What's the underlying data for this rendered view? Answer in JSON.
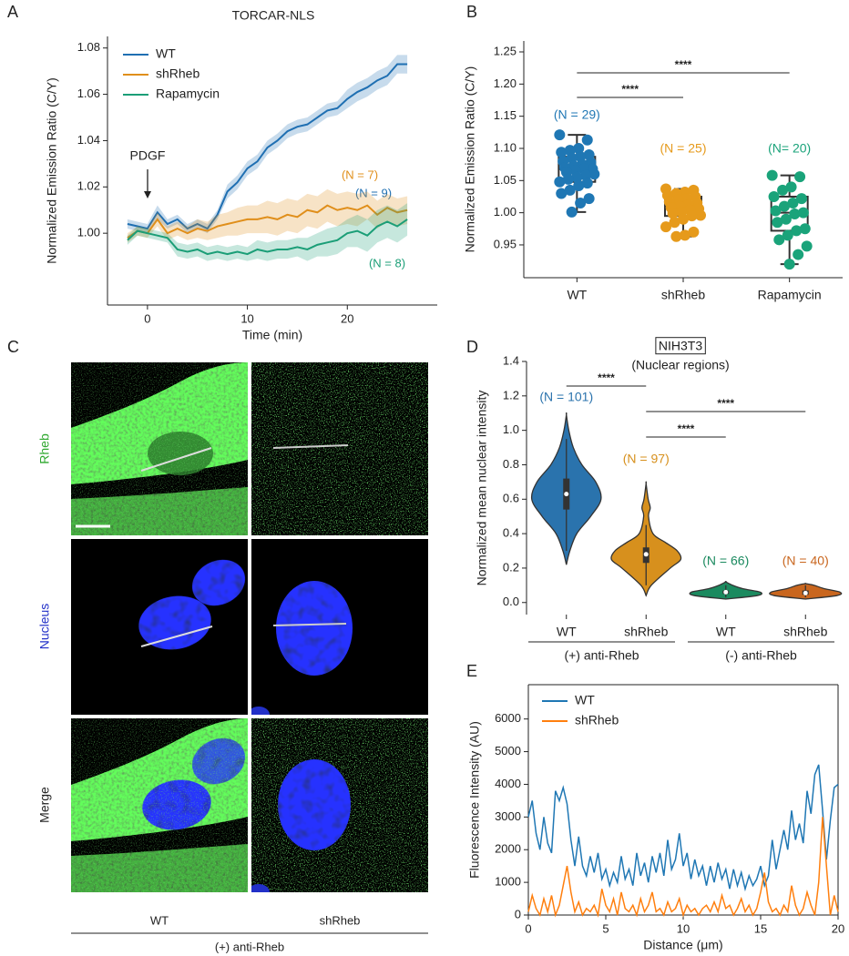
{
  "panel_labels": [
    "A",
    "B",
    "C",
    "D",
    "E"
  ],
  "image_panel": {
    "row_labels": [
      "Rheb",
      "Nucleus",
      "Merge"
    ],
    "column_labels": [
      "WT",
      "shRheb"
    ],
    "group_label": "(+) anti-Rheb"
  },
  "chart_data": [
    {
      "type": "line",
      "title": "TORCAR-NLS",
      "x_label": "Time (min)",
      "y_label": "Normalized Emission Ratio (C/Y)",
      "x": [
        -2,
        -1,
        0,
        1,
        2,
        3,
        4,
        5,
        6,
        7,
        8,
        9,
        10,
        11,
        12,
        13,
        14,
        15,
        16,
        17,
        18,
        19,
        20,
        21,
        22,
        23,
        24,
        25,
        26
      ],
      "series": [
        {
          "name": "WT",
          "color": "#1f6fb2",
          "n_label": "(N = 9)",
          "values": [
            1.004,
            1.003,
            1.002,
            1.009,
            1.004,
            1.006,
            1.002,
            1.004,
            1.002,
            1.008,
            1.018,
            1.022,
            1.028,
            1.031,
            1.037,
            1.04,
            1.044,
            1.046,
            1.047,
            1.05,
            1.053,
            1.054,
            1.058,
            1.061,
            1.063,
            1.066,
            1.068,
            1.073,
            1.073
          ],
          "errors": [
            0.002,
            0.002,
            0.002,
            0.003,
            0.002,
            0.002,
            0.002,
            0.002,
            0.002,
            0.002,
            0.003,
            0.003,
            0.003,
            0.003,
            0.003,
            0.003,
            0.003,
            0.003,
            0.003,
            0.003,
            0.003,
            0.003,
            0.004,
            0.004,
            0.004,
            0.004,
            0.004,
            0.004,
            0.004
          ]
        },
        {
          "name": "shRheb",
          "color": "#e08f1b",
          "n_label": "(N = 7)",
          "values": [
            0.998,
            1.001,
            1.0,
            1.006,
            1.0,
            1.002,
            1.0,
            1.002,
            1.001,
            1.003,
            1.004,
            1.005,
            1.006,
            1.006,
            1.007,
            1.006,
            1.008,
            1.007,
            1.01,
            1.009,
            1.012,
            1.01,
            1.011,
            1.01,
            1.012,
            1.008,
            1.011,
            1.009,
            1.01
          ],
          "errors": [
            0.002,
            0.002,
            0.002,
            0.003,
            0.003,
            0.003,
            0.003,
            0.004,
            0.004,
            0.005,
            0.005,
            0.006,
            0.006,
            0.006,
            0.007,
            0.007,
            0.007,
            0.007,
            0.007,
            0.007,
            0.007,
            0.007,
            0.007,
            0.007,
            0.006,
            0.006,
            0.006,
            0.006,
            0.006
          ]
        },
        {
          "name": "Rapamycin",
          "color": "#1b9e77",
          "n_label": "(N = 8)",
          "values": [
            0.997,
            1.001,
            1.0,
            0.999,
            0.998,
            0.993,
            0.992,
            0.993,
            0.991,
            0.992,
            0.991,
            0.992,
            0.991,
            0.993,
            0.992,
            0.993,
            0.993,
            0.994,
            0.993,
            0.995,
            0.996,
            0.997,
            1.0,
            1.001,
            0.999,
            1.003,
            1.005,
            1.003,
            1.006
          ],
          "errors": [
            0.002,
            0.002,
            0.002,
            0.002,
            0.002,
            0.003,
            0.003,
            0.003,
            0.003,
            0.003,
            0.003,
            0.003,
            0.003,
            0.004,
            0.004,
            0.004,
            0.004,
            0.004,
            0.005,
            0.005,
            0.006,
            0.006,
            0.006,
            0.007,
            0.007,
            0.007,
            0.007,
            0.007,
            0.007
          ]
        }
      ],
      "annotations": [
        "PDGF"
      ],
      "xlim": [
        -4,
        29
      ],
      "ylim": [
        0.969,
        1.085
      ],
      "xticks": [
        0,
        10,
        20
      ],
      "yticks": [
        {
          "value": 1,
          "label": "1.00"
        },
        1.02,
        1.04,
        1.06,
        1.08
      ],
      "legend": "upper left"
    },
    {
      "type": "box",
      "y_label": "Normalized Emission Ratio (C/Y)",
      "categories": [
        "WT",
        "shRheb",
        "Rapamycin"
      ],
      "boxes": [
        {
          "color": "#1f77b4",
          "n_label": "(N = 29)",
          "whislo": 1.001,
          "q1": 1.048,
          "med": 1.068,
          "q3": 1.087,
          "whishi": 1.121,
          "points": [
            1.121,
            1.113,
            1.1,
            1.097,
            1.094,
            1.09,
            1.087,
            1.085,
            1.08,
            1.078,
            1.075,
            1.073,
            1.07,
            1.068,
            1.068,
            1.066,
            1.063,
            1.06,
            1.058,
            1.055,
            1.052,
            1.048,
            1.046,
            1.042,
            1.035,
            1.03,
            1.022,
            1.015,
            1.001
          ]
        },
        {
          "color": "#e69a1b",
          "n_label": "(N = 25)",
          "whislo": 0.963,
          "q1": 0.995,
          "med": 1.008,
          "q3": 1.025,
          "whishi": 1.037,
          "points": [
            1.037,
            1.035,
            1.032,
            1.03,
            1.027,
            1.025,
            1.022,
            1.02,
            1.017,
            1.015,
            1.012,
            1.01,
            1.008,
            1.006,
            1.004,
            1.001,
            0.999,
            0.996,
            0.995,
            0.99,
            0.985,
            0.978,
            0.97,
            0.965,
            0.963
          ]
        },
        {
          "color": "#1aa37a",
          "n_label": "(N= 20)",
          "whislo": 0.92,
          "q1": 0.972,
          "med": 1.0,
          "q3": 1.025,
          "whishi": 1.058,
          "points": [
            1.058,
            1.056,
            1.04,
            1.035,
            1.025,
            1.022,
            1.015,
            1.01,
            1.003,
            1.0,
            0.998,
            0.99,
            0.985,
            0.975,
            0.972,
            0.965,
            0.958,
            0.948,
            0.935,
            0.92
          ]
        }
      ],
      "significance": [
        "****",
        "****"
      ],
      "ylim": [
        0.899,
        1.267
      ],
      "yticks": [
        0.95,
        {
          "value": 1,
          "label": "1.00"
        },
        1.05,
        {
          "value": 1.1,
          "label": "1.10"
        },
        1.15,
        {
          "value": 1.2,
          "label": "1.20"
        },
        1.25
      ]
    },
    {
      "type": "violin",
      "title": "NIH3T3",
      "subtitle": "(Nuclear regions)",
      "y_label": "Normalized mean nuclear intensity",
      "categories": [
        "WT",
        "shRheb",
        "WT",
        "shRheb"
      ],
      "group_labels": [
        "(+) anti-Rheb",
        "(-) anti-Rheb"
      ],
      "violins": [
        {
          "color": "#2a73ad",
          "n_label": "(N = 101)",
          "whislo": 0.3,
          "q1": 0.54,
          "med": 0.63,
          "q3": 0.72,
          "whishi": 0.95,
          "density_y": [
            0.22,
            0.3,
            0.4,
            0.5,
            0.6,
            0.7,
            0.8,
            0.9,
            1.0,
            1.09
          ],
          "density": [
            0,
            0.1,
            0.3,
            0.7,
            1.0,
            0.85,
            0.45,
            0.2,
            0.07,
            0
          ]
        },
        {
          "color": "#d7901d",
          "n_label": "(N = 97)",
          "whislo": 0.1,
          "q1": 0.23,
          "med": 0.28,
          "q3": 0.32,
          "whishi": 0.45,
          "density_y": [
            0.04,
            0.1,
            0.2,
            0.25,
            0.3,
            0.35,
            0.4,
            0.5,
            0.55,
            0.6,
            0.69
          ],
          "density": [
            0,
            0.15,
            0.7,
            1.0,
            0.9,
            0.55,
            0.2,
            0.07,
            0.12,
            0.06,
            0
          ]
        },
        {
          "color": "#1b8a5f",
          "n_label": "(N = 66)",
          "whislo": 0.03,
          "q1": 0.05,
          "med": 0.06,
          "q3": 0.07,
          "whishi": 0.1,
          "density_y": [
            0.02,
            0.04,
            0.06,
            0.08,
            0.1,
            0.12
          ],
          "density": [
            0,
            0.9,
            1.0,
            0.5,
            0.2,
            0
          ]
        },
        {
          "color": "#c9661e",
          "n_label": "(N = 40)",
          "whislo": 0.03,
          "q1": 0.045,
          "med": 0.055,
          "q3": 0.07,
          "whishi": 0.1,
          "density_y": [
            0.02,
            0.04,
            0.06,
            0.08,
            0.1,
            0.11
          ],
          "density": [
            0,
            0.9,
            1.0,
            0.55,
            0.25,
            0
          ]
        }
      ],
      "significance": [
        "****",
        "****",
        "****"
      ],
      "ylim": [
        -0.07,
        1.4
      ],
      "yticks": [
        {
          "value": 0,
          "label": "0.0"
        },
        0.2,
        0.4,
        0.6,
        0.8,
        {
          "value": 1,
          "label": "1.0"
        },
        1.2,
        1.4
      ]
    },
    {
      "type": "line",
      "x_label": "Distance (μm)",
      "y_label": "Fluorescence Intensity (AU)",
      "x": [
        0,
        0.25,
        0.5,
        0.75,
        1,
        1.25,
        1.5,
        1.75,
        2,
        2.25,
        2.5,
        2.75,
        3,
        3.25,
        3.5,
        3.75,
        4,
        4.25,
        4.5,
        4.75,
        5,
        5.25,
        5.5,
        5.75,
        6,
        6.25,
        6.5,
        6.75,
        7,
        7.25,
        7.5,
        7.75,
        8,
        8.25,
        8.5,
        8.75,
        9,
        9.25,
        9.5,
        9.75,
        10,
        10.25,
        10.5,
        10.75,
        11,
        11.25,
        11.5,
        11.75,
        12,
        12.25,
        12.5,
        12.75,
        13,
        13.25,
        13.5,
        13.75,
        14,
        14.25,
        14.5,
        14.75,
        15,
        15.25,
        15.5,
        15.75,
        16,
        16.25,
        16.5,
        16.75,
        17,
        17.25,
        17.5,
        17.75,
        18,
        18.25,
        18.5,
        18.75,
        19,
        19.25,
        19.5,
        19.75,
        20
      ],
      "series": [
        {
          "name": "WT",
          "color": "#1f77b4",
          "values": [
            3000,
            3500,
            2500,
            2000,
            3000,
            2200,
            1900,
            3800,
            3500,
            3900,
            3400,
            2300,
            1500,
            2400,
            1500,
            1200,
            1800,
            1300,
            1900,
            1100,
            1400,
            900,
            1300,
            1000,
            1800,
            1100,
            1400,
            900,
            1900,
            1200,
            1600,
            1000,
            1800,
            1300,
            1900,
            1200,
            2300,
            1400,
            1700,
            2500,
            1500,
            1900,
            1100,
            1700,
            1200,
            1500,
            900,
            1500,
            1000,
            1600,
            1100,
            1400,
            800,
            1400,
            900,
            1300,
            800,
            1200,
            900,
            1100,
            1500,
            900,
            1200,
            2300,
            1400,
            2000,
            2600,
            2000,
            3200,
            2300,
            2800,
            2200,
            3800,
            3100,
            4300,
            4600,
            3200,
            1700,
            2900,
            3900,
            4000
          ]
        },
        {
          "name": "shRheb",
          "color": "#ff7f0e",
          "values": [
            100,
            600,
            200,
            0,
            500,
            100,
            600,
            0,
            300,
            900,
            1500,
            700,
            100,
            400,
            0,
            200,
            100,
            300,
            0,
            800,
            300,
            100,
            500,
            0,
            700,
            200,
            100,
            300,
            0,
            500,
            100,
            300,
            700,
            100,
            200,
            0,
            400,
            100,
            200,
            500,
            0,
            300,
            100,
            200,
            0,
            200,
            300,
            100,
            400,
            100,
            600,
            200,
            300,
            0,
            200,
            500,
            100,
            300,
            0,
            200,
            700,
            1300,
            400,
            100,
            200,
            0,
            300,
            100,
            900,
            300,
            0,
            200,
            700,
            300,
            0,
            1000,
            3000,
            1500,
            0,
            600,
            100
          ]
        }
      ],
      "xlim": [
        0,
        20
      ],
      "ylim": [
        0,
        7050
      ],
      "xticks": [
        0,
        5,
        10,
        15,
        20
      ],
      "yticks": [
        0,
        1000,
        2000,
        3000,
        4000,
        5000,
        6000
      ],
      "legend": "upper left",
      "frame": true
    }
  ]
}
